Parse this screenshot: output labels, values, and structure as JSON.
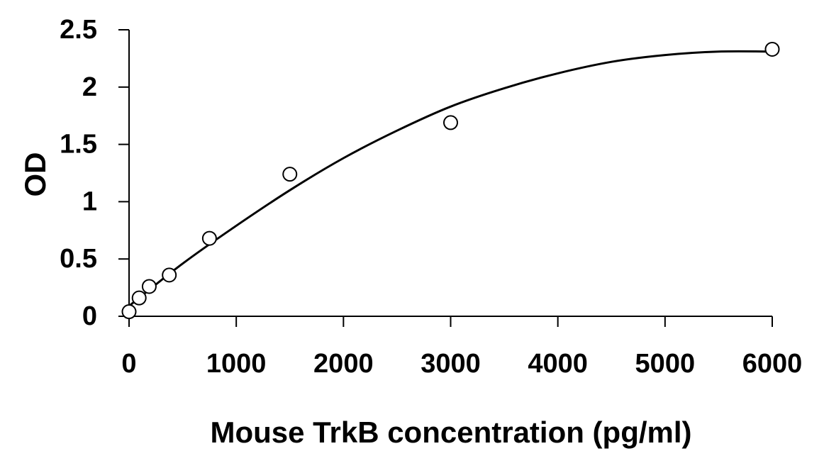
{
  "chart_data": {
    "type": "scatter",
    "title": "",
    "xlabel": "Mouse TrkB concentration (pg/ml)",
    "ylabel": "OD",
    "xlim": [
      0,
      6000
    ],
    "ylim": [
      0,
      2.5
    ],
    "x_ticks": [
      0,
      1000,
      2000,
      3000,
      4000,
      5000,
      6000
    ],
    "x_tick_labels": [
      "0",
      "1000",
      "2000",
      "3000",
      "4000",
      "5000",
      "6000"
    ],
    "y_ticks": [
      0,
      0.5,
      1,
      1.5,
      2,
      2.5
    ],
    "y_tick_labels": [
      "0",
      "0.5",
      "1",
      "1.5",
      "2",
      "2.5"
    ],
    "grid": false,
    "legend": "none",
    "series": [
      {
        "points": [
          {
            "x": 0,
            "y": 0.04
          },
          {
            "x": 94,
            "y": 0.16
          },
          {
            "x": 188,
            "y": 0.26
          },
          {
            "x": 375,
            "y": 0.36
          },
          {
            "x": 750,
            "y": 0.68
          },
          {
            "x": 1500,
            "y": 1.24
          },
          {
            "x": 3000,
            "y": 1.69
          },
          {
            "x": 6000,
            "y": 2.33
          }
        ],
        "marker": "open-circle",
        "color": "#000000"
      }
    ],
    "fit_curve": {
      "type": "polynomial-2",
      "x": [
        0,
        500,
        1000,
        1500,
        2000,
        2500,
        3000,
        3500,
        4000,
        4500,
        5000,
        5500,
        6000
      ],
      "y": [
        0.09,
        0.46,
        0.79,
        1.1,
        1.38,
        1.62,
        1.83,
        1.99,
        2.12,
        2.22,
        2.28,
        2.31,
        2.31
      ],
      "color": "#000000"
    }
  }
}
